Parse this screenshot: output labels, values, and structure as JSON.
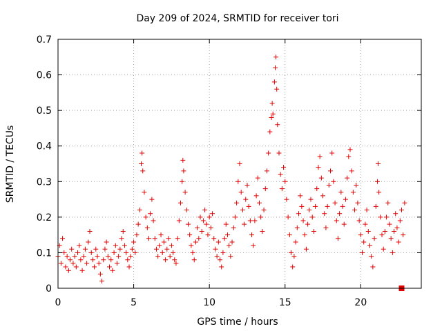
{
  "chart_data": {
    "type": "scatter",
    "title": "Day 209 of 2024, SRMTID for receiver tori",
    "xlabel": "GPS time / hours",
    "ylabel": "SRMTID / TECUs",
    "xlim": [
      0,
      24
    ],
    "ylim": [
      0,
      0.7
    ],
    "xticks": [
      0,
      5,
      10,
      15,
      20
    ],
    "xtick_labels": [
      "0",
      "5",
      "10",
      "15",
      "20"
    ],
    "yticks": [
      0,
      0.1,
      0.2,
      0.3,
      0.4,
      0.5,
      0.6,
      0.7
    ],
    "ytick_labels": [
      "0",
      "0.1",
      "0.2",
      "0.3",
      "0.4",
      "0.5",
      "0.6",
      "0.7"
    ],
    "grid": true,
    "marker": "plus",
    "series_color": "#e00000",
    "end_marker": {
      "x": 22.7,
      "y": 0.0
    },
    "series": [
      {
        "name": "SRMTID",
        "points": [
          [
            0.0,
            0.09
          ],
          [
            0.1,
            0.12
          ],
          [
            0.2,
            0.07
          ],
          [
            0.3,
            0.14
          ],
          [
            0.4,
            0.1
          ],
          [
            0.5,
            0.06
          ],
          [
            0.6,
            0.09
          ],
          [
            0.7,
            0.05
          ],
          [
            0.8,
            0.08
          ],
          [
            0.9,
            0.11
          ],
          [
            1.0,
            0.07
          ],
          [
            1.1,
            0.09
          ],
          [
            1.2,
            0.06
          ],
          [
            1.3,
            0.1
          ],
          [
            1.4,
            0.12
          ],
          [
            1.5,
            0.08
          ],
          [
            1.6,
            0.05
          ],
          [
            1.7,
            0.09
          ],
          [
            1.8,
            0.11
          ],
          [
            1.9,
            0.07
          ],
          [
            2.0,
            0.13
          ],
          [
            2.1,
            0.16
          ],
          [
            2.2,
            0.1
          ],
          [
            2.3,
            0.08
          ],
          [
            2.4,
            0.06
          ],
          [
            2.5,
            0.11
          ],
          [
            2.6,
            0.09
          ],
          [
            2.7,
            0.07
          ],
          [
            2.8,
            0.04
          ],
          [
            2.9,
            0.02
          ],
          [
            3.0,
            0.08
          ],
          [
            3.1,
            0.11
          ],
          [
            3.2,
            0.13
          ],
          [
            3.3,
            0.09
          ],
          [
            3.4,
            0.06
          ],
          [
            3.5,
            0.08
          ],
          [
            3.6,
            0.05
          ],
          [
            3.7,
            0.1
          ],
          [
            3.8,
            0.12
          ],
          [
            3.9,
            0.07
          ],
          [
            4.0,
            0.09
          ],
          [
            4.1,
            0.11
          ],
          [
            4.2,
            0.14
          ],
          [
            4.3,
            0.16
          ],
          [
            4.4,
            0.12
          ],
          [
            4.5,
            0.1
          ],
          [
            4.6,
            0.08
          ],
          [
            4.7,
            0.06
          ],
          [
            4.8,
            0.09
          ],
          [
            4.9,
            0.11
          ],
          [
            5.0,
            0.13
          ],
          [
            5.1,
            0.1
          ],
          [
            5.2,
            0.15
          ],
          [
            5.3,
            0.18
          ],
          [
            5.4,
            0.22
          ],
          [
            5.5,
            0.35
          ],
          [
            5.55,
            0.38
          ],
          [
            5.6,
            0.33
          ],
          [
            5.7,
            0.27
          ],
          [
            5.8,
            0.2
          ],
          [
            5.9,
            0.17
          ],
          [
            6.0,
            0.14
          ],
          [
            6.1,
            0.21
          ],
          [
            6.2,
            0.25
          ],
          [
            6.3,
            0.19
          ],
          [
            6.4,
            0.14
          ],
          [
            6.5,
            0.11
          ],
          [
            6.6,
            0.09
          ],
          [
            6.7,
            0.12
          ],
          [
            6.8,
            0.15
          ],
          [
            6.9,
            0.1
          ],
          [
            7.0,
            0.13
          ],
          [
            7.1,
            0.08
          ],
          [
            7.2,
            0.11
          ],
          [
            7.3,
            0.14
          ],
          [
            7.4,
            0.09
          ],
          [
            7.5,
            0.12
          ],
          [
            7.6,
            0.1
          ],
          [
            7.7,
            0.08
          ],
          [
            7.8,
            0.07
          ],
          [
            7.9,
            0.14
          ],
          [
            8.0,
            0.19
          ],
          [
            8.1,
            0.24
          ],
          [
            8.2,
            0.3
          ],
          [
            8.25,
            0.36
          ],
          [
            8.3,
            0.33
          ],
          [
            8.4,
            0.27
          ],
          [
            8.5,
            0.22
          ],
          [
            8.6,
            0.18
          ],
          [
            8.7,
            0.15
          ],
          [
            8.8,
            0.12
          ],
          [
            8.9,
            0.1
          ],
          [
            9.0,
            0.08
          ],
          [
            9.1,
            0.13
          ],
          [
            9.2,
            0.17
          ],
          [
            9.3,
            0.14
          ],
          [
            9.4,
            0.2
          ],
          [
            9.5,
            0.16
          ],
          [
            9.6,
            0.19
          ],
          [
            9.7,
            0.22
          ],
          [
            9.8,
            0.18
          ],
          [
            9.9,
            0.15
          ],
          [
            10.0,
            0.2
          ],
          [
            10.1,
            0.17
          ],
          [
            10.2,
            0.21
          ],
          [
            10.3,
            0.14
          ],
          [
            10.4,
            0.11
          ],
          [
            10.5,
            0.09
          ],
          [
            10.6,
            0.13
          ],
          [
            10.7,
            0.08
          ],
          [
            10.8,
            0.06
          ],
          [
            10.9,
            0.1
          ],
          [
            11.0,
            0.14
          ],
          [
            11.1,
            0.18
          ],
          [
            11.2,
            0.15
          ],
          [
            11.3,
            0.12
          ],
          [
            11.4,
            0.09
          ],
          [
            11.5,
            0.13
          ],
          [
            11.6,
            0.17
          ],
          [
            11.7,
            0.2
          ],
          [
            11.8,
            0.24
          ],
          [
            11.9,
            0.3
          ],
          [
            12.0,
            0.35
          ],
          [
            12.1,
            0.27
          ],
          [
            12.2,
            0.22
          ],
          [
            12.3,
            0.18
          ],
          [
            12.4,
            0.25
          ],
          [
            12.5,
            0.29
          ],
          [
            12.6,
            0.23
          ],
          [
            12.7,
            0.19
          ],
          [
            12.8,
            0.15
          ],
          [
            12.9,
            0.12
          ],
          [
            13.0,
            0.19
          ],
          [
            13.1,
            0.26
          ],
          [
            13.2,
            0.31
          ],
          [
            13.3,
            0.24
          ],
          [
            13.4,
            0.2
          ],
          [
            13.5,
            0.16
          ],
          [
            13.6,
            0.22
          ],
          [
            13.7,
            0.28
          ],
          [
            13.8,
            0.33
          ],
          [
            13.9,
            0.38
          ],
          [
            14.0,
            0.44
          ],
          [
            14.1,
            0.48
          ],
          [
            14.15,
            0.52
          ],
          [
            14.2,
            0.49
          ],
          [
            14.3,
            0.58
          ],
          [
            14.35,
            0.62
          ],
          [
            14.4,
            0.65
          ],
          [
            14.45,
            0.56
          ],
          [
            14.5,
            0.46
          ],
          [
            14.6,
            0.38
          ],
          [
            14.7,
            0.32
          ],
          [
            14.8,
            0.28
          ],
          [
            14.9,
            0.34
          ],
          [
            15.0,
            0.3
          ],
          [
            15.1,
            0.25
          ],
          [
            15.2,
            0.2
          ],
          [
            15.3,
            0.15
          ],
          [
            15.4,
            0.1
          ],
          [
            15.5,
            0.06
          ],
          [
            15.6,
            0.09
          ],
          [
            15.7,
            0.13
          ],
          [
            15.8,
            0.17
          ],
          [
            15.9,
            0.21
          ],
          [
            16.0,
            0.26
          ],
          [
            16.1,
            0.23
          ],
          [
            16.2,
            0.19
          ],
          [
            16.3,
            0.15
          ],
          [
            16.4,
            0.11
          ],
          [
            16.5,
            0.18
          ],
          [
            16.6,
            0.22
          ],
          [
            16.7,
            0.25
          ],
          [
            16.8,
            0.2
          ],
          [
            16.9,
            0.16
          ],
          [
            17.0,
            0.23
          ],
          [
            17.1,
            0.28
          ],
          [
            17.2,
            0.34
          ],
          [
            17.3,
            0.37
          ],
          [
            17.4,
            0.31
          ],
          [
            17.5,
            0.26
          ],
          [
            17.6,
            0.21
          ],
          [
            17.7,
            0.17
          ],
          [
            17.8,
            0.23
          ],
          [
            17.9,
            0.29
          ],
          [
            18.0,
            0.33
          ],
          [
            18.1,
            0.38
          ],
          [
            18.2,
            0.3
          ],
          [
            18.3,
            0.24
          ],
          [
            18.4,
            0.19
          ],
          [
            18.5,
            0.14
          ],
          [
            18.6,
            0.21
          ],
          [
            18.7,
            0.27
          ],
          [
            18.8,
            0.23
          ],
          [
            18.9,
            0.18
          ],
          [
            19.0,
            0.25
          ],
          [
            19.1,
            0.31
          ],
          [
            19.2,
            0.37
          ],
          [
            19.3,
            0.39
          ],
          [
            19.4,
            0.33
          ],
          [
            19.5,
            0.27
          ],
          [
            19.6,
            0.22
          ],
          [
            19.7,
            0.29
          ],
          [
            19.8,
            0.24
          ],
          [
            19.9,
            0.19
          ],
          [
            20.0,
            0.15
          ],
          [
            20.1,
            0.1
          ],
          [
            20.2,
            0.13
          ],
          [
            20.3,
            0.18
          ],
          [
            20.4,
            0.22
          ],
          [
            20.5,
            0.16
          ],
          [
            20.6,
            0.12
          ],
          [
            20.7,
            0.09
          ],
          [
            20.8,
            0.06
          ],
          [
            20.9,
            0.14
          ],
          [
            21.0,
            0.23
          ],
          [
            21.1,
            0.3
          ],
          [
            21.15,
            0.35
          ],
          [
            21.2,
            0.27
          ],
          [
            21.3,
            0.2
          ],
          [
            21.4,
            0.15
          ],
          [
            21.5,
            0.11
          ],
          [
            21.6,
            0.16
          ],
          [
            21.7,
            0.2
          ],
          [
            21.8,
            0.24
          ],
          [
            21.9,
            0.18
          ],
          [
            22.0,
            0.14
          ],
          [
            22.1,
            0.1
          ],
          [
            22.2,
            0.16
          ],
          [
            22.3,
            0.21
          ],
          [
            22.4,
            0.17
          ],
          [
            22.5,
            0.13
          ],
          [
            22.6,
            0.19
          ],
          [
            22.7,
            0.22
          ],
          [
            22.8,
            0.15
          ],
          [
            22.9,
            0.24
          ]
        ]
      }
    ]
  }
}
